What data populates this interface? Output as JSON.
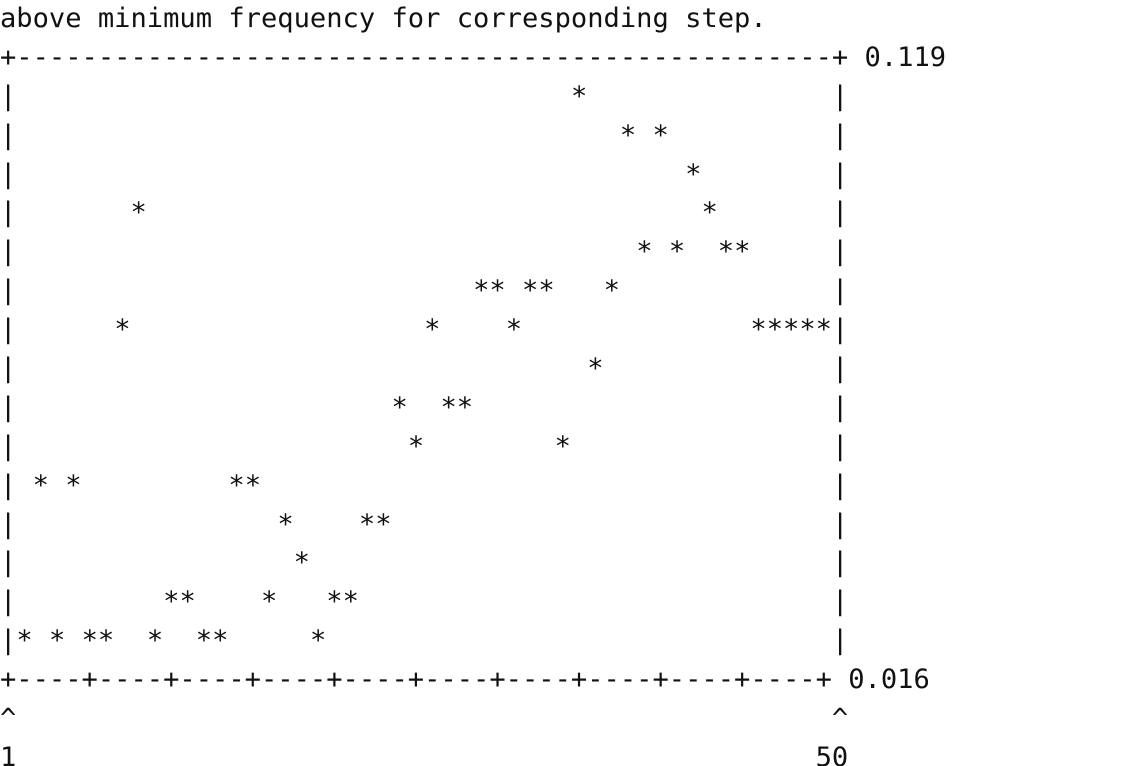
{
  "header_text": "above minimum frequency for corresponding step.",
  "chart_data": {
    "type": "scatter",
    "title": "",
    "xlabel": "",
    "ylabel": "",
    "x_tick_labels": [
      "1",
      "50"
    ],
    "y_tick_labels": [
      "0.119",
      "0.016"
    ],
    "xlim": [
      1,
      50
    ],
    "ylim": [
      0.016,
      0.119
    ],
    "plot_symbol": "*",
    "series": [
      {
        "x": [
          1,
          2,
          3,
          4,
          5,
          6,
          7,
          8,
          9,
          10,
          11,
          12,
          13,
          14,
          15,
          16,
          17,
          18,
          19,
          20,
          21,
          22,
          23,
          24,
          25,
          26,
          27,
          28,
          29,
          30,
          31,
          32,
          33,
          34,
          35,
          36,
          37,
          38,
          39,
          40,
          41,
          42,
          43,
          44,
          45,
          46,
          47,
          48,
          49,
          50
        ],
        "values": [
          0.016,
          0.046,
          0.016,
          0.046,
          0.016,
          0.016,
          0.075,
          0.1,
          0.016,
          0.023,
          0.023,
          0.016,
          0.016,
          0.046,
          0.046,
          0.023,
          0.038,
          0.031,
          0.016,
          0.023,
          0.023,
          0.038,
          0.038,
          0.06,
          0.053,
          0.075,
          0.06,
          0.06,
          0.082,
          0.082,
          0.075,
          0.082,
          0.082,
          0.053,
          0.119,
          0.068,
          0.082,
          0.111,
          0.089,
          0.111,
          0.089,
          0.104,
          0.096,
          0.089,
          0.089,
          0.075,
          0.075,
          0.075,
          0.075,
          0.075
        ]
      }
    ]
  }
}
